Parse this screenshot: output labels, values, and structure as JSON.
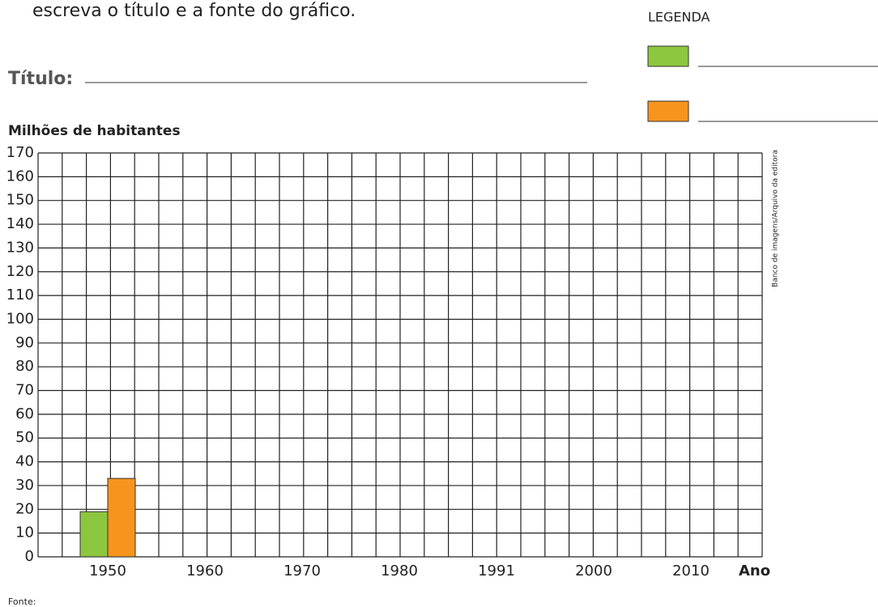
{
  "instruction": "escreva o título e a fonte do gráfico.",
  "title_label": "Título:",
  "legend_label": "LEGENDA",
  "source_label": "Fonte:",
  "credit": "Banco de imagens/Arquivo da editora",
  "chart_data": {
    "type": "bar",
    "y_label": "Milhões de habitantes",
    "x_label": "Ano",
    "categories": [
      "1950",
      "1960",
      "1970",
      "1980",
      "1991",
      "2000",
      "2010"
    ],
    "series": [
      {
        "color": "#8dc63f",
        "values": [
          19,
          null,
          null,
          null,
          null,
          null,
          null
        ]
      },
      {
        "color": "#f7941d",
        "values": [
          33,
          null,
          null,
          null,
          null,
          null,
          null
        ]
      }
    ],
    "ylim": [
      0,
      170
    ],
    "yticks": [
      0,
      10,
      20,
      30,
      40,
      50,
      60,
      70,
      80,
      90,
      100,
      110,
      120,
      130,
      140,
      150,
      160,
      170
    ],
    "grid": true
  }
}
